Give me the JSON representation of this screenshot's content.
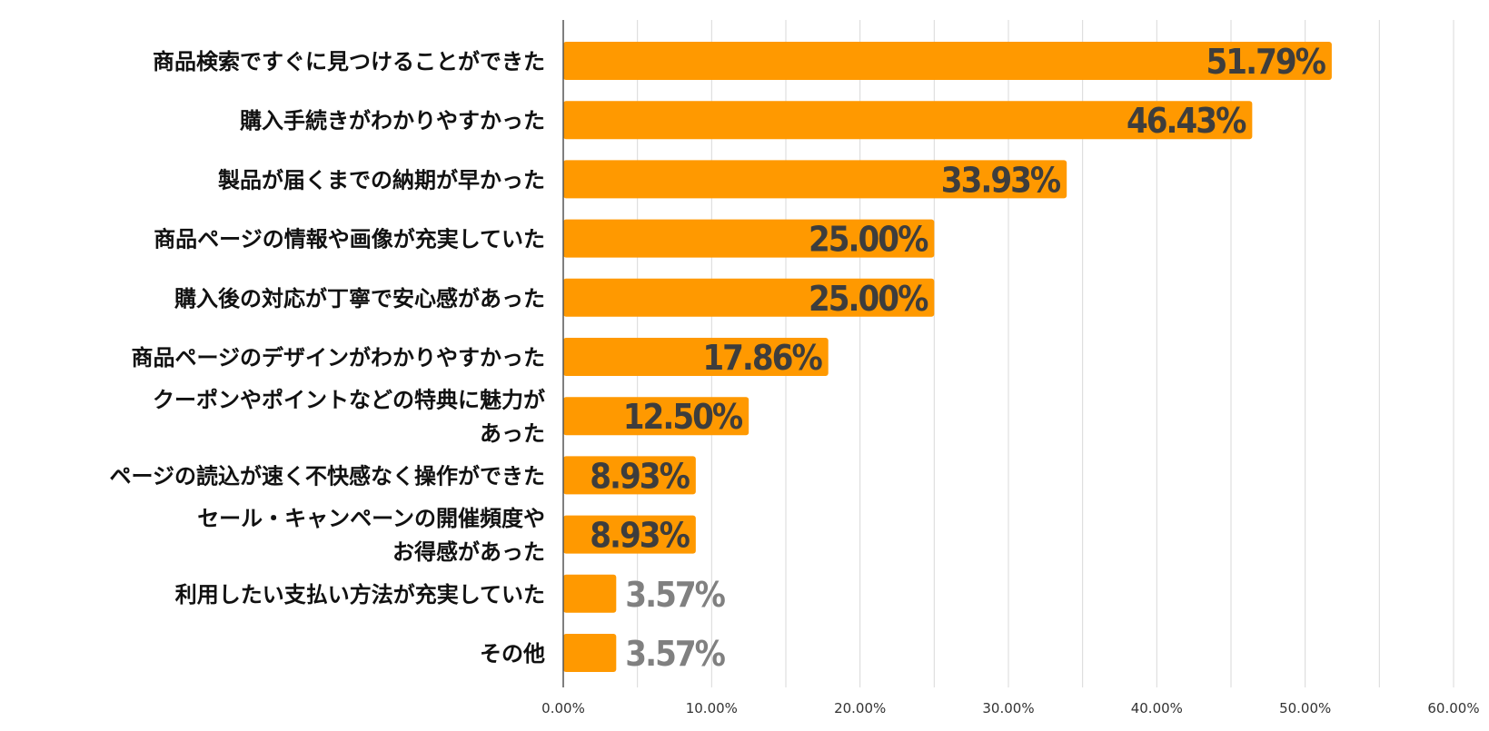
{
  "chart_data": {
    "type": "bar",
    "orientation": "horizontal",
    "title": "",
    "xlabel": "",
    "ylabel": "",
    "xlim": [
      0,
      60
    ],
    "grid": true,
    "legend": "none",
    "bar_color": "#FF9900",
    "value_label_color_inside": "#3d3d3d",
    "value_label_color_outside": "#808080",
    "gridline_color": "#d9d9d9",
    "axis_color": "#555555",
    "x_ticks": [
      "0.00%",
      "10.00%",
      "20.00%",
      "30.00%",
      "40.00%",
      "50.00%",
      "60.00%"
    ],
    "categories": [
      [
        "商品検索ですぐに見つけることができた"
      ],
      [
        "購入手続きがわかりやすかった"
      ],
      [
        "製品が届くまでの納期が早かった"
      ],
      [
        "商品ページの情報や画像が充実していた"
      ],
      [
        "購入後の対応が丁寧で安心感があった"
      ],
      [
        "商品ページのデザインがわかりやすかった"
      ],
      [
        "クーポンやポイントなどの特典に魅力が",
        "あった"
      ],
      [
        "ページの読込が速く不快感なく操作ができた"
      ],
      [
        "セール・キャンペーンの開催頻度や",
        "お得感があった"
      ],
      [
        "利用したい支払い方法が充実していた"
      ],
      [
        "その他"
      ]
    ],
    "values": [
      51.79,
      46.43,
      33.93,
      25.0,
      25.0,
      17.86,
      12.5,
      8.93,
      8.93,
      3.57,
      3.57
    ],
    "value_labels": [
      "51.79%",
      "46.43%",
      "33.93%",
      "25.00%",
      "25.00%",
      "17.86%",
      "12.50%",
      "8.93%",
      "8.93%",
      "3.57%",
      "3.57%"
    ]
  }
}
